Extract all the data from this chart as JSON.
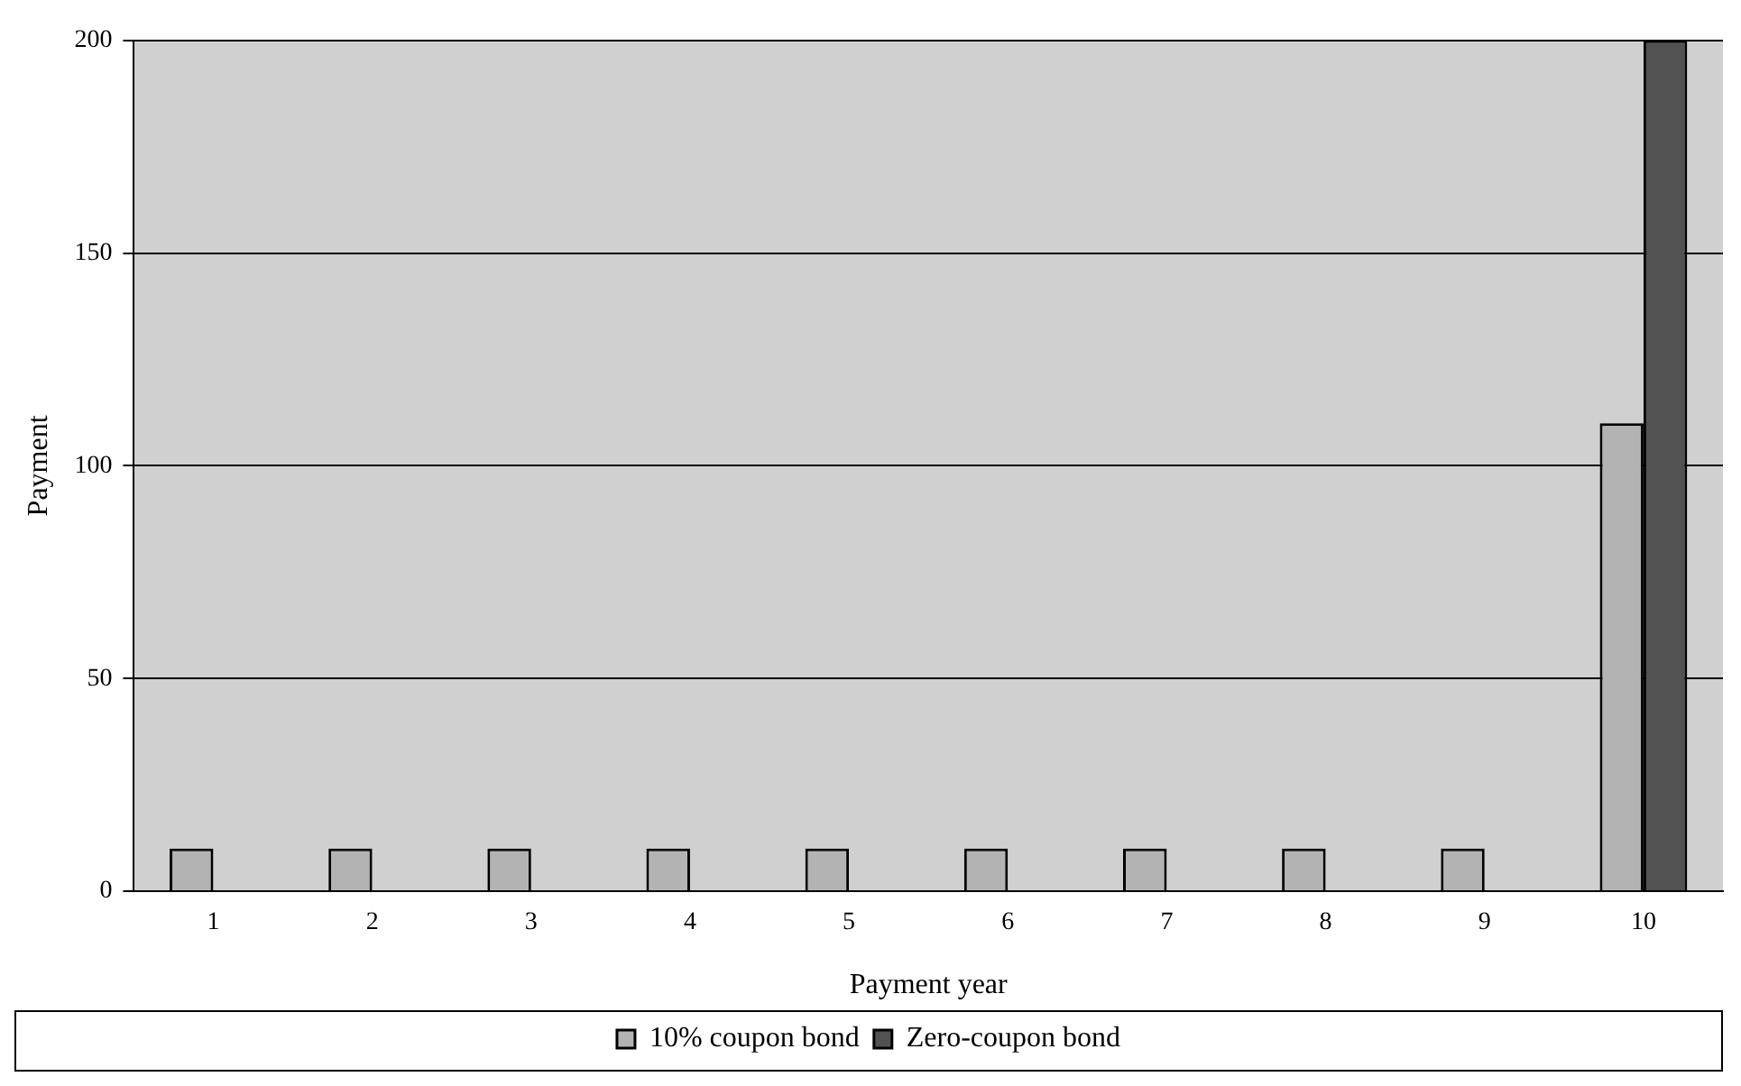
{
  "chart_data": {
    "type": "bar",
    "xlabel": "Payment year",
    "ylabel": "Payment",
    "categories": [
      "1",
      "2",
      "3",
      "4",
      "5",
      "6",
      "7",
      "8",
      "9",
      "10"
    ],
    "series": [
      {
        "name": "10% coupon bond",
        "color": "#b3b3b3",
        "values": [
          10,
          10,
          10,
          10,
          10,
          10,
          10,
          10,
          10,
          110
        ]
      },
      {
        "name": "Zero-coupon bond",
        "color": "#525252",
        "values": [
          0,
          0,
          0,
          0,
          0,
          0,
          0,
          0,
          0,
          200
        ]
      }
    ],
    "ylim": [
      0,
      200
    ],
    "yticks": [
      0,
      50,
      100,
      150,
      200
    ],
    "grid": "y",
    "legend": "bottom"
  }
}
